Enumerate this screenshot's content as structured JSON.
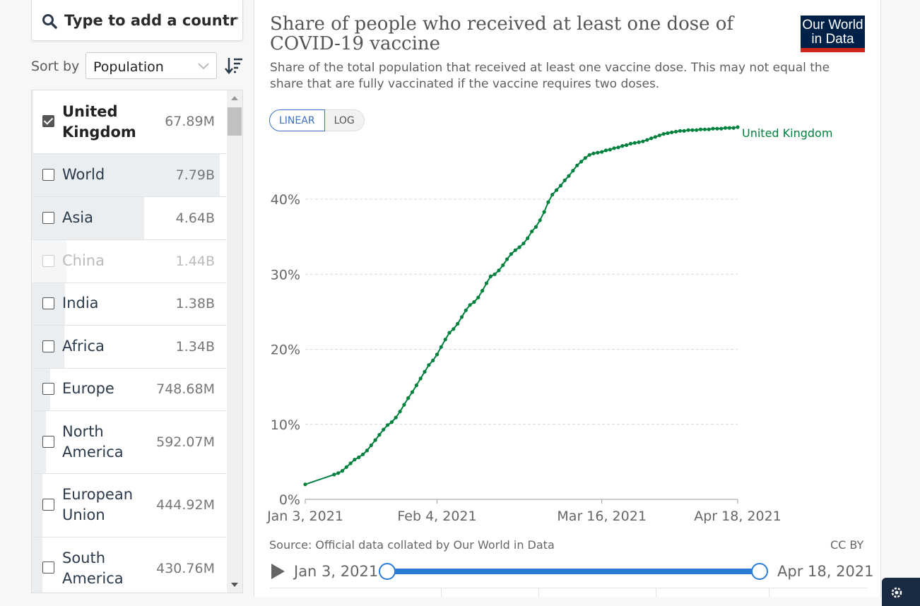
{
  "search": {
    "placeholder": "Type to add a country.."
  },
  "sort": {
    "label": "Sort by",
    "selected": "Population"
  },
  "countries": [
    {
      "name": "United Kingdom",
      "population": "67.89M",
      "checked": true,
      "bar_fraction": 0.0087
    },
    {
      "name": "World",
      "population": "7.79B",
      "checked": false,
      "bar_fraction": 1.0
    },
    {
      "name": "Asia",
      "population": "4.64B",
      "checked": false,
      "bar_fraction": 0.596
    },
    {
      "name": "China",
      "population": "1.44B",
      "checked": false,
      "bar_fraction": 0.185
    },
    {
      "name": "India",
      "population": "1.38B",
      "checked": false,
      "bar_fraction": 0.177
    },
    {
      "name": "Africa",
      "population": "1.34B",
      "checked": false,
      "bar_fraction": 0.172
    },
    {
      "name": "Europe",
      "population": "748.68M",
      "checked": false,
      "bar_fraction": 0.096
    },
    {
      "name": "North America",
      "population": "592.07M",
      "checked": false,
      "bar_fraction": 0.076
    },
    {
      "name": "European Union",
      "population": "444.92M",
      "checked": false,
      "bar_fraction": 0.057
    },
    {
      "name": "South America",
      "population": "430.76M",
      "checked": false,
      "bar_fraction": 0.055
    }
  ],
  "logo": {
    "line1": "Our World",
    "line2": "in Data"
  },
  "scale": {
    "linear": "LINEAR",
    "log": "LOG",
    "active": "linear"
  },
  "source": "Source: Official data collated by Our World in Data",
  "license": "CC BY",
  "timeline": {
    "start": "Jan 3, 2021",
    "end": "Apr 18, 2021"
  },
  "colors": {
    "series": "#00813d",
    "accent": "#2b7bd6",
    "logo_bg": "#002147",
    "logo_bar": "#ce261e"
  },
  "chart_data": {
    "type": "line",
    "title": "Share of people who received at least one dose of COVID-19 vaccine",
    "subtitle": "Share of the total population that received at least one vaccine dose. This may not equal the share that are fully vaccinated if the vaccine requires two doses.",
    "xlabel": "",
    "ylabel": "",
    "x_domain": [
      0,
      105
    ],
    "ylim": [
      0,
      48
    ],
    "y_ticks": [
      0,
      10,
      20,
      30,
      40
    ],
    "y_tick_labels": [
      "0%",
      "10%",
      "20%",
      "30%",
      "40%"
    ],
    "x_ticks": [
      0,
      32,
      72,
      105
    ],
    "x_tick_labels": [
      "Jan 3, 2021",
      "Feb 4, 2021",
      "Mar 16, 2021",
      "Apr 18, 2021"
    ],
    "grid": true,
    "series": [
      {
        "name": "United Kingdom",
        "day_offset_from_jan3": [
          0,
          7,
          8,
          9,
          10,
          11,
          12,
          13,
          14,
          15,
          16,
          17,
          18,
          19,
          20,
          21,
          22,
          23,
          24,
          25,
          26,
          27,
          28,
          29,
          30,
          31,
          32,
          33,
          34,
          35,
          36,
          37,
          38,
          39,
          40,
          41,
          42,
          43,
          44,
          45,
          46,
          47,
          48,
          49,
          50,
          51,
          52,
          53,
          54,
          55,
          56,
          57,
          58,
          59,
          60,
          61,
          62,
          63,
          64,
          65,
          66,
          67,
          68,
          69,
          70,
          71,
          72,
          73,
          74,
          75,
          76,
          77,
          78,
          79,
          80,
          81,
          82,
          83,
          84,
          85,
          86,
          87,
          88,
          89,
          90,
          91,
          92,
          93,
          94,
          95,
          96,
          97,
          98,
          99,
          100,
          101,
          102,
          103,
          104,
          105
        ],
        "values": [
          2.0,
          3.3,
          3.5,
          3.8,
          4.3,
          4.8,
          5.3,
          5.6,
          6.0,
          6.5,
          7.2,
          7.9,
          8.6,
          9.3,
          9.9,
          10.3,
          10.9,
          11.7,
          12.6,
          13.5,
          14.3,
          15.2,
          16.1,
          17.0,
          17.9,
          18.5,
          19.3,
          20.3,
          21.3,
          22.2,
          22.7,
          23.4,
          24.3,
          25.2,
          25.9,
          26.3,
          26.9,
          27.8,
          28.8,
          29.7,
          30.0,
          30.5,
          31.2,
          32.0,
          32.7,
          33.2,
          33.6,
          34.1,
          34.8,
          35.7,
          36.3,
          37.2,
          38.3,
          39.6,
          40.6,
          41.2,
          41.8,
          42.5,
          43.1,
          43.8,
          44.5,
          45.0,
          45.5,
          45.9,
          46.1,
          46.2,
          46.3,
          46.5,
          46.6,
          46.8,
          46.9,
          47.1,
          47.2,
          47.4,
          47.5,
          47.6,
          47.7,
          47.9,
          48.1,
          48.3,
          48.5,
          48.7,
          48.8,
          48.9,
          49.0,
          49.1,
          49.1,
          49.2,
          49.2,
          49.2,
          49.3,
          49.3,
          49.3,
          49.4,
          49.4,
          49.4,
          49.5,
          49.5,
          49.5,
          49.6
        ]
      }
    ]
  }
}
